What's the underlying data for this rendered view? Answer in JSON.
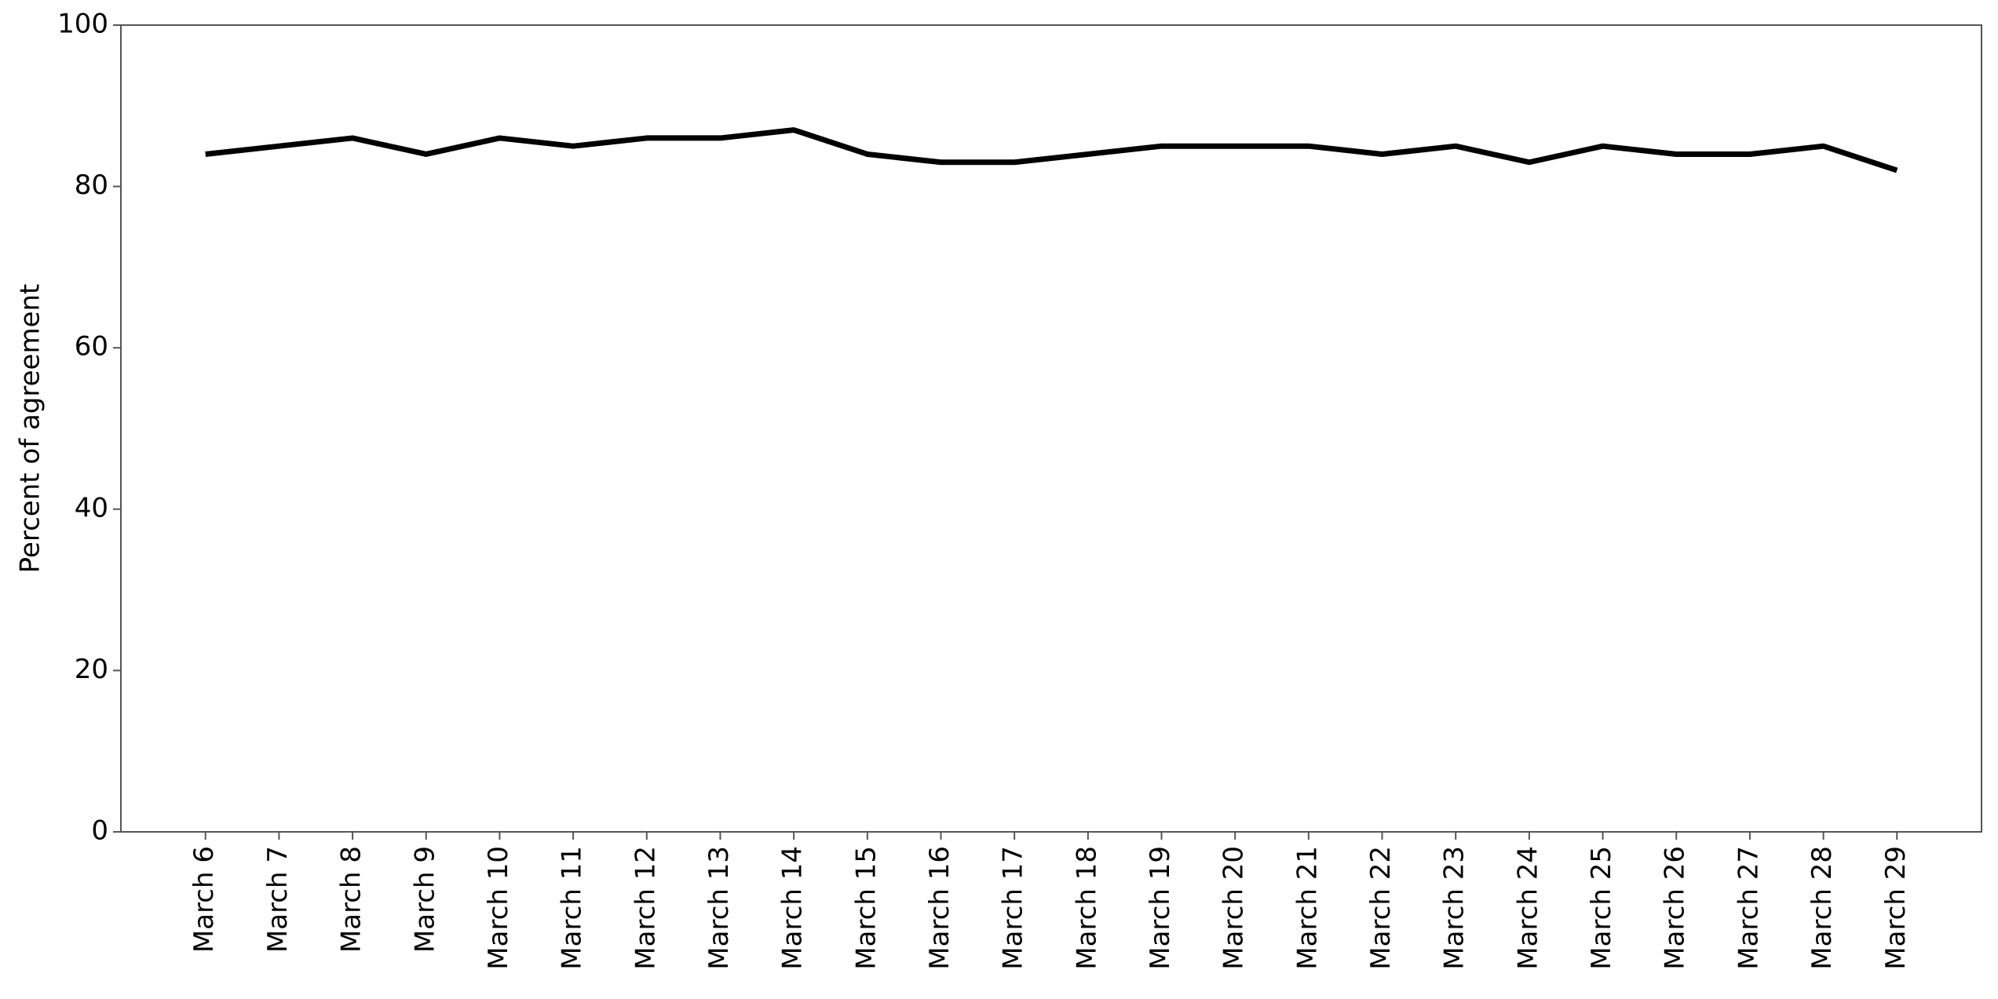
{
  "chart_data": {
    "type": "line",
    "y_label": "Percent of agreement",
    "categories": [
      "March 6",
      "March 7",
      "March 8",
      "March 9",
      "March 10",
      "March 11",
      "March 12",
      "March 13",
      "March 14",
      "March 15",
      "March 16",
      "March 17",
      "March 18",
      "March 19",
      "March 20",
      "March 21",
      "March 22",
      "March 23",
      "March 24",
      "March 25",
      "March 26",
      "March 27",
      "March 28",
      "March 29"
    ],
    "series": [
      {
        "color": "#000000",
        "values": [
          84,
          85,
          86,
          84,
          86,
          85,
          86,
          86,
          87,
          84,
          83,
          83,
          84,
          85,
          85,
          85,
          84,
          85,
          83,
          85,
          84,
          84,
          85,
          82
        ]
      }
    ],
    "ylim": [
      0,
      100
    ],
    "yticks": [
      0,
      20,
      40,
      60,
      80,
      100
    ],
    "grid": false
  }
}
